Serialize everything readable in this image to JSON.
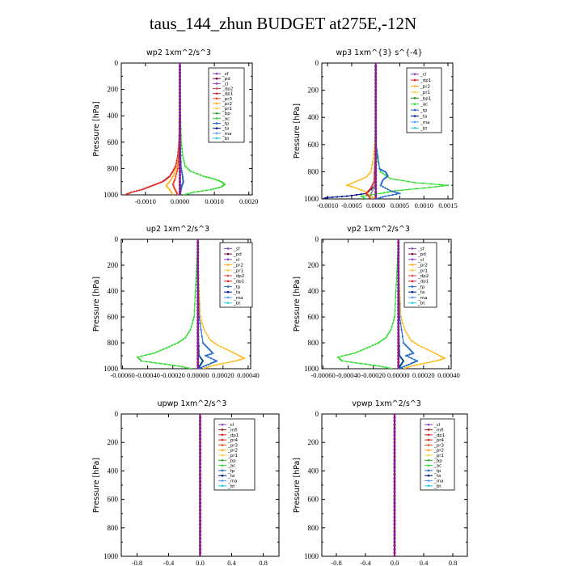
{
  "page": {
    "title": "taus_144_zhun  BUDGET at275E,-12N"
  },
  "chart_data": [
    {
      "type": "line",
      "title": "wp2   1xm^2/s^3",
      "ylabel": "Pressure  [hPa]",
      "xlim": [
        -0.0017,
        0.0021
      ],
      "ylim": [
        1000,
        0
      ],
      "xticks": [
        -0.001,
        0,
        0.001,
        0.002
      ],
      "xticklabels": [
        "-0.0010",
        "0.0000",
        "0.0010",
        "0.0020"
      ],
      "yticks": [
        0,
        200,
        400,
        600,
        800,
        1000
      ],
      "legend": [
        "_sf",
        "_pd",
        "_cl",
        "_dp2",
        "_dp1",
        "_pr3",
        "_pr2",
        "_pr1",
        "_bp",
        "_ac",
        "_tp",
        "_ta",
        "_ma",
        "_bt"
      ],
      "series": [
        {
          "name": "_ac",
          "color": "#33dd33",
          "y": [
            0,
            200,
            400,
            600,
            700,
            780,
            820,
            860,
            880,
            900,
            920,
            940,
            960,
            980,
            1000
          ],
          "x": [
            0,
            1e-05,
            2e-05,
            4e-05,
            8e-05,
            0.00015,
            0.0003,
            0.0007,
            0.001,
            0.0012,
            0.0013,
            0.0012,
            0.0009,
            0.0004,
            0.0001
          ]
        },
        {
          "name": "_dp1",
          "color": "#dd2222",
          "y": [
            0,
            200,
            400,
            600,
            700,
            780,
            820,
            860,
            880,
            900,
            920,
            940,
            960,
            980,
            1000
          ],
          "x": [
            0,
            0,
            -1e-05,
            -3e-05,
            -6e-05,
            -0.00012,
            -0.0002,
            -0.0003,
            -0.0004,
            -0.0005,
            -0.0007,
            -0.0009,
            -0.0011,
            -0.0014,
            -0.0016
          ]
        },
        {
          "name": "_pr1",
          "color": "#ffbb22",
          "y": [
            0,
            200,
            400,
            600,
            700,
            800,
            860,
            900,
            930,
            960,
            1000
          ],
          "x": [
            0,
            0,
            -1e-05,
            -2e-05,
            -4e-05,
            -0.0001,
            -0.0002,
            -0.0003,
            -0.0004,
            -0.0003,
            -0.0002
          ]
        },
        {
          "name": "_pr3",
          "color": "#ee4422",
          "y": [
            0,
            200,
            600,
            800,
            880,
            920,
            950,
            980,
            1000
          ],
          "x": [
            0,
            0,
            -1e-05,
            -6e-05,
            -0.00014,
            -0.0002,
            -0.00016,
            -0.0001,
            -6e-05
          ]
        },
        {
          "name": "_tp",
          "color": "#2266cc",
          "y": [
            0,
            200,
            600,
            800,
            860,
            900,
            930,
            960,
            1000
          ],
          "x": [
            0,
            0,
            1e-05,
            4e-05,
            8e-05,
            0.0001,
            6e-05,
            3e-05,
            1e-05
          ]
        },
        {
          "name": "_sf",
          "color": "#8844bb",
          "y": [
            0,
            200,
            400,
            600,
            800,
            1000
          ],
          "x": [
            0,
            0,
            0,
            0,
            0,
            0
          ]
        },
        {
          "name": "_bt",
          "color": "#22ccdd",
          "y": [
            0,
            200,
            400,
            600,
            800,
            1000
          ],
          "x": [
            0,
            0,
            0,
            0,
            0,
            0
          ]
        },
        {
          "name": "_pd",
          "color": "#770044",
          "y": [
            0,
            200,
            400,
            600,
            800,
            1000
          ],
          "x": [
            0,
            0,
            0,
            0,
            0,
            0
          ]
        }
      ]
    },
    {
      "type": "line",
      "title": "wp3   1xm^{3} s^{-4}",
      "ylabel": "Pressure  [hPa]",
      "xlim": [
        -0.00112,
        0.0016
      ],
      "ylim": [
        1000,
        0
      ],
      "xticks": [
        -0.001,
        -0.0005,
        0,
        0.0005,
        0.001,
        0.0015
      ],
      "xticklabels": [
        "-0.0010",
        "-0.0005",
        "0.0000",
        "0.0005",
        "0.0010",
        "0.0015"
      ],
      "yticks": [
        0,
        200,
        400,
        600,
        800,
        1000
      ],
      "legend": [
        "_cl",
        "_dp1",
        "_pr2",
        "_pr1",
        "_bp1",
        "_ac",
        "_tp",
        "_ta",
        "_ma",
        "_bt"
      ],
      "series": [
        {
          "name": "_ac",
          "color": "#33dd33",
          "y": [
            0,
            200,
            400,
            600,
            700,
            800,
            850,
            880,
            900,
            920,
            940,
            960,
            980,
            1000
          ],
          "x": [
            0,
            0,
            0,
            1e-05,
            3e-05,
            0.0001,
            0.0003,
            0.0008,
            0.0015,
            0.001,
            0.0004,
            0.0001,
            -0.0003,
            -0.0002
          ]
        },
        {
          "name": "_pr2",
          "color": "#ffbb22",
          "y": [
            0,
            200,
            400,
            600,
            700,
            800,
            840,
            870,
            900,
            920,
            950,
            980,
            1000
          ],
          "x": [
            0,
            0,
            0,
            -2e-05,
            -5e-05,
            -0.0001,
            -0.0002,
            -0.0004,
            -0.0006,
            -0.0004,
            -0.0002,
            -0.0001,
            0
          ]
        },
        {
          "name": "_tp",
          "color": "#2266cc",
          "y": [
            0,
            200,
            600,
            780,
            800,
            830,
            860,
            900,
            940,
            960,
            980,
            1000
          ],
          "x": [
            0,
            0,
            1e-05,
            8e-05,
            0.0002,
            0.00025,
            0.00015,
            0.0001,
            0.0003,
            0.0005,
            0.0002,
            0
          ]
        },
        {
          "name": "_ta",
          "color": "#001188",
          "y": [
            0,
            200,
            600,
            900,
            960,
            980,
            990,
            1000
          ],
          "x": [
            0,
            0,
            0,
            0,
            -0.0002,
            -0.0006,
            -0.001,
            -0.0011
          ]
        },
        {
          "name": "_dp1",
          "color": "#dd2222",
          "y": [
            0,
            200,
            600,
            880,
            920,
            960,
            1000
          ],
          "x": [
            0,
            0,
            0,
            -4e-05,
            -0.0001,
            -0.0002,
            -0.0001
          ]
        },
        {
          "name": "_bp1",
          "color": "#888888",
          "y": [
            0,
            200,
            600,
            900,
            950,
            1000
          ],
          "x": [
            0,
            0,
            0,
            -2e-05,
            -8e-05,
            -0.00015
          ]
        },
        {
          "name": "_cl",
          "color": "#8844bb",
          "y": [
            0,
            200,
            400,
            600,
            800,
            1000
          ],
          "x": [
            0,
            0,
            0,
            0,
            0,
            0
          ]
        },
        {
          "name": "_bt",
          "color": "#22ccdd",
          "y": [
            0,
            200,
            400,
            600,
            800,
            1000
          ],
          "x": [
            0,
            0,
            0,
            0,
            0,
            0
          ]
        }
      ]
    },
    {
      "type": "line",
      "title": "up2   1xm^2/s^3",
      "ylabel": "Pressure  [hPa]",
      "xlim": [
        -0.00061,
        0.00042
      ],
      "ylim": [
        1000,
        0
      ],
      "xticks": [
        -0.0006,
        -0.0004,
        -0.0002,
        0,
        0.0002,
        0.0004
      ],
      "xticklabels": [
        "-0.00060",
        "-0.00040",
        "-0.00020",
        "0.00000",
        "0.00020",
        "0.00040"
      ],
      "yticks": [
        0,
        200,
        400,
        600,
        800,
        1000
      ],
      "legend": [
        "_sf",
        "_pd",
        "_cl",
        "_pr2",
        "_pr1",
        "_dp2",
        "_dp1",
        "_tp",
        "_ta",
        "_ma",
        "_bt"
      ],
      "series": [
        {
          "name": "_dp1",
          "color": "#33dd33",
          "y": [
            0,
            200,
            400,
            600,
            700,
            760,
            800,
            840,
            880,
            910,
            940,
            960,
            980,
            1000
          ],
          "x": [
            0,
            -1e-05,
            -2e-05,
            -3e-05,
            -6e-05,
            -0.0001,
            -0.00016,
            -0.00025,
            -0.00035,
            -0.00048,
            -0.00045,
            -0.0003,
            -0.00015,
            -5e-05
          ]
        },
        {
          "name": "_pr1",
          "color": "#ffbb22",
          "y": [
            0,
            200,
            400,
            600,
            700,
            780,
            820,
            860,
            900,
            920,
            940,
            960,
            980,
            1000
          ],
          "x": [
            0,
            0,
            1e-05,
            2e-05,
            5e-05,
            0.0001,
            0.00016,
            0.00025,
            0.00033,
            0.00037,
            0.0003,
            0.0002,
            0.0001,
            4e-05
          ]
        },
        {
          "name": "_tp",
          "color": "#2266cc",
          "y": [
            0,
            200,
            600,
            800,
            840,
            880,
            900,
            940,
            960,
            990,
            1000
          ],
          "x": [
            0,
            0,
            1e-05,
            4e-05,
            8e-05,
            0.00012,
            6e-05,
            0.00015,
            0.0001,
            3e-05,
            1e-05
          ]
        },
        {
          "name": "_ta",
          "color": "#004488",
          "y": [
            0,
            200,
            600,
            900,
            940,
            970,
            1000
          ],
          "x": [
            0,
            0,
            0,
            1e-05,
            4e-05,
            2e-05,
            0
          ]
        },
        {
          "name": "_pd",
          "color": "#770044",
          "y": [
            0,
            200,
            400,
            600,
            800,
            1000
          ],
          "x": [
            0,
            0,
            0,
            0,
            0,
            0
          ]
        },
        {
          "name": "_sf",
          "color": "#cc2222",
          "y": [
            0,
            200,
            400,
            600,
            800,
            1000
          ],
          "x": [
            0,
            0,
            0,
            0,
            0,
            0
          ]
        }
      ]
    },
    {
      "type": "line",
      "title": "vp2   1xm^2/s^3",
      "ylabel": "Pressure  [hPa]",
      "xlim": [
        -0.00061,
        0.00042
      ],
      "ylim": [
        1000,
        0
      ],
      "xticks": [
        -0.0006,
        -0.0004,
        -0.0002,
        0,
        0.0002,
        0.0004
      ],
      "xticklabels": [
        "-0.00060",
        "-0.00040",
        "-0.00020",
        "0.00000",
        "0.00020",
        "0.00040"
      ],
      "yticks": [
        0,
        200,
        400,
        600,
        800,
        1000
      ],
      "legend": [
        "_sf",
        "_pd",
        "_cl",
        "_pr2",
        "_pr1",
        "_dp2",
        "_dp1",
        "_tp",
        "_ta",
        "_ma",
        "_bt"
      ],
      "series": [
        {
          "name": "_dp1",
          "color": "#33dd33",
          "y": [
            0,
            200,
            400,
            600,
            700,
            760,
            800,
            840,
            880,
            910,
            940,
            960,
            980,
            1000
          ],
          "x": [
            0,
            -1e-05,
            -2e-05,
            -3e-05,
            -6e-05,
            -0.0001,
            -0.00016,
            -0.00025,
            -0.00035,
            -0.00048,
            -0.00045,
            -0.0003,
            -0.00015,
            -5e-05
          ]
        },
        {
          "name": "_pr1",
          "color": "#ffbb22",
          "y": [
            0,
            200,
            400,
            600,
            700,
            780,
            820,
            860,
            900,
            920,
            940,
            960,
            980,
            1000
          ],
          "x": [
            0,
            0,
            1e-05,
            2e-05,
            5e-05,
            0.0001,
            0.00016,
            0.00025,
            0.00033,
            0.00037,
            0.0003,
            0.0002,
            0.0001,
            4e-05
          ]
        },
        {
          "name": "_tp",
          "color": "#2266cc",
          "y": [
            0,
            200,
            600,
            800,
            840,
            880,
            900,
            940,
            960,
            990,
            1000
          ],
          "x": [
            0,
            0,
            1e-05,
            4e-05,
            8e-05,
            0.00012,
            6e-05,
            0.00015,
            0.0001,
            3e-05,
            1e-05
          ]
        },
        {
          "name": "_ta",
          "color": "#004488",
          "y": [
            0,
            200,
            600,
            900,
            940,
            970,
            1000
          ],
          "x": [
            0,
            0,
            0,
            1e-05,
            4e-05,
            2e-05,
            0
          ]
        },
        {
          "name": "_pd",
          "color": "#770044",
          "y": [
            0,
            200,
            400,
            600,
            800,
            1000
          ],
          "x": [
            0,
            0,
            0,
            0,
            0,
            0
          ]
        },
        {
          "name": "_sf",
          "color": "#cc2222",
          "y": [
            0,
            200,
            400,
            600,
            800,
            1000
          ],
          "x": [
            0,
            0,
            0,
            0,
            0,
            0
          ]
        }
      ]
    },
    {
      "type": "line",
      "title": "upwp   1xm^2/s^3",
      "ylabel": "Pressure  [hPa]",
      "xlim": [
        -1.0,
        1.0
      ],
      "ylim": [
        1000,
        0
      ],
      "xticks": [
        -0.8,
        -0.4,
        0,
        0.4,
        0.8
      ],
      "xticklabels": [
        "-0.8",
        "-0.4",
        "0.0",
        "0.4",
        "0.8"
      ],
      "yticks": [
        0,
        200,
        400,
        600,
        800,
        1000
      ],
      "legend": [
        "_cl",
        "_mfl",
        "_dp1",
        "_pr4",
        "_pr3",
        "_pr2",
        "_pr1",
        "_bp",
        "_ac",
        "_tp",
        "_ta",
        "_ma",
        "_bt"
      ],
      "series": [
        {
          "name": "_mfl",
          "color": "#aa2222",
          "y": [
            0,
            200,
            400,
            600,
            800,
            1000
          ],
          "x": [
            0,
            0,
            0,
            0,
            0,
            0
          ]
        },
        {
          "name": "_cl",
          "color": "#8844bb",
          "y": [
            0,
            200,
            400,
            600,
            800,
            1000
          ],
          "x": [
            0,
            0,
            0,
            0,
            0,
            0
          ]
        }
      ]
    },
    {
      "type": "line",
      "title": "vpwp   1xm^2/s^3",
      "ylabel": "Pressure  [hPa]",
      "xlim": [
        -1.0,
        1.0
      ],
      "ylim": [
        1000,
        0
      ],
      "xticks": [
        -0.8,
        -0.4,
        0,
        0.4,
        0.8
      ],
      "xticklabels": [
        "-0.8",
        "-0.4",
        "0.0",
        "0.4",
        "0.8"
      ],
      "yticks": [
        0,
        200,
        400,
        600,
        800,
        1000
      ],
      "legend": [
        "_cl",
        "_mfl",
        "_dp1",
        "_pr4",
        "_pr3",
        "_pr2",
        "_pr1",
        "_bp",
        "_ac",
        "_tp",
        "_ta",
        "_ma",
        "_bt"
      ],
      "series": [
        {
          "name": "_mfl",
          "color": "#aa2222",
          "y": [
            0,
            200,
            400,
            600,
            800,
            1000
          ],
          "x": [
            0,
            0,
            0,
            0,
            0,
            0
          ]
        },
        {
          "name": "_cl",
          "color": "#8844bb",
          "y": [
            0,
            200,
            400,
            600,
            800,
            1000
          ],
          "x": [
            0,
            0,
            0,
            0,
            0,
            0
          ]
        }
      ]
    }
  ],
  "legend_colors": {
    "_sf": "#8844bb",
    "_pd": "#770044",
    "_cl": "#8844bb",
    "_mfl": "#aa2222",
    "_dp2": "#dd4444",
    "_dp1": "#dd2222",
    "_dp4": "#aa3333",
    "_pr4": "#cc3322",
    "_pr3": "#ee4422",
    "_pr2": "#ffaa22",
    "_pr1": "#ffcc44",
    "_bp": "#33aa33",
    "_bp1": "#228822",
    "_ac": "#33dd33",
    "_tp": "#2266cc",
    "_ta": "#001188",
    "_ma": "#5599ff",
    "_bt": "#22ccdd"
  }
}
